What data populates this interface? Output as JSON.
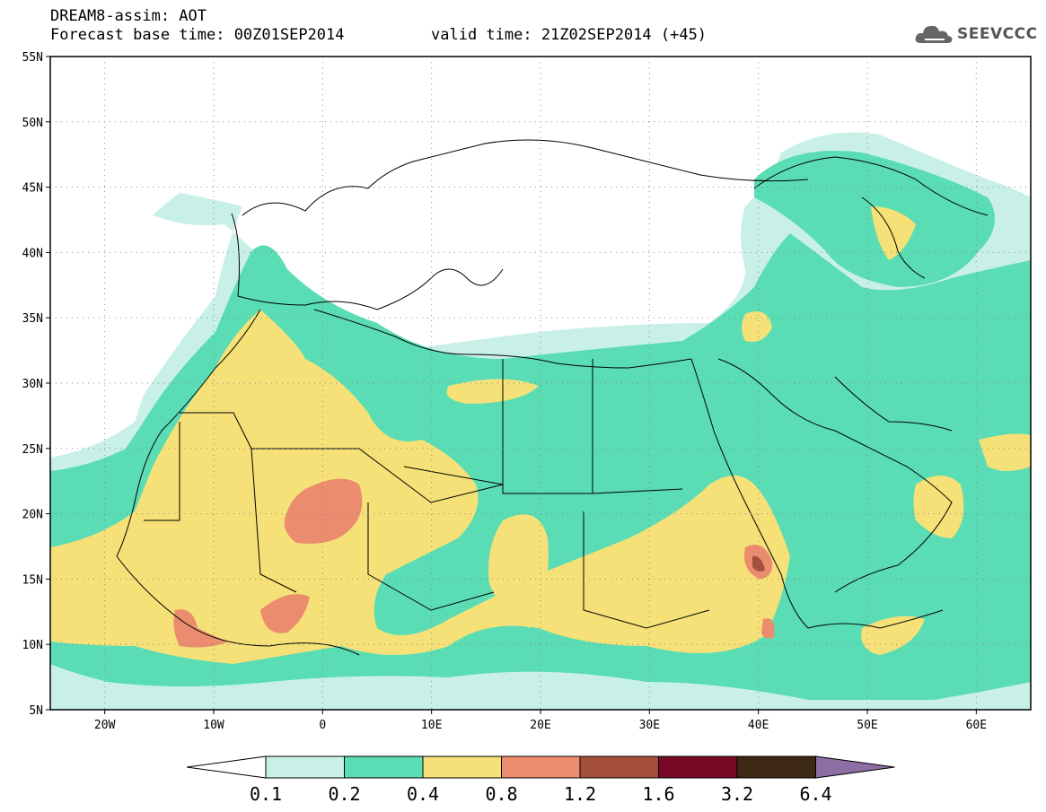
{
  "header": {
    "title_line1": "DREAM8-assim: AOT",
    "title_line2": "Forecast base time: 00Z01SEP2014",
    "valid_time": "valid time: 21Z02SEP2014 (+45)"
  },
  "logo": {
    "text": "SEEVCCC",
    "icon": "cloud-icon"
  },
  "map": {
    "lon_range": [
      -25,
      65
    ],
    "lat_range": [
      5,
      55
    ],
    "lat_labels": [
      "55N",
      "50N",
      "45N",
      "40N",
      "35N",
      "30N",
      "25N",
      "20N",
      "15N",
      "10N",
      "5N"
    ],
    "lon_labels": [
      "20W",
      "10W",
      "0",
      "10E",
      "20E",
      "30E",
      "40E",
      "50E",
      "60E"
    ]
  },
  "colorbar": {
    "colors": [
      "#c8f0e8",
      "#5adcb4",
      "#f5e178",
      "#eb8c6e",
      "#a5503c",
      "#780a28",
      "#3c2814",
      "#8c6ea5"
    ],
    "labels": [
      "0.1",
      "0.2",
      "0.4",
      "0.8",
      "1.2",
      "1.6",
      "3.2",
      "6.4"
    ]
  }
}
